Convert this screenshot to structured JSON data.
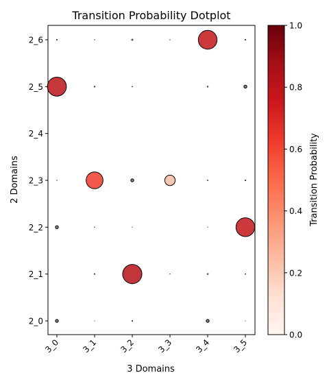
{
  "chart_data": {
    "type": "scatter",
    "title": "Transition Probability Dotplot",
    "xlabel": "3 Domains",
    "ylabel": "2 Domains",
    "x_categories": [
      "3_0",
      "3_1",
      "3_2",
      "3_3",
      "3_4",
      "3_5"
    ],
    "y_categories": [
      "2_0",
      "2_1",
      "2_2",
      "2_3",
      "2_4",
      "2_5",
      "2_6"
    ],
    "colorbar": {
      "label": "Transition Probability",
      "range": [
        0,
        1
      ],
      "ticks": [
        "0.0",
        "0.2",
        "0.4",
        "0.6",
        "0.8",
        "1.0"
      ],
      "colormap": "Reds"
    },
    "points": [
      {
        "x": "3_0",
        "y": "2_6",
        "value": 0.003
      },
      {
        "x": "3_1",
        "y": "2_6",
        "value": 0.001
      },
      {
        "x": "3_2",
        "y": "2_6",
        "value": 0.006
      },
      {
        "x": "3_3",
        "y": "2_6",
        "value": 0.001
      },
      {
        "x": "3_4",
        "y": "2_6",
        "value": 0.78
      },
      {
        "x": "3_5",
        "y": "2_6",
        "value": 0.003
      },
      {
        "x": "3_0",
        "y": "2_5",
        "value": 0.8
      },
      {
        "x": "3_1",
        "y": "2_5",
        "value": 0.004
      },
      {
        "x": "3_2",
        "y": "2_5",
        "value": 0.002
      },
      {
        "x": "3_4",
        "y": "2_5",
        "value": 0.004
      },
      {
        "x": "3_5",
        "y": "2_5",
        "value": 0.02
      },
      {
        "x": "3_0",
        "y": "2_3",
        "value": 0.001
      },
      {
        "x": "3_1",
        "y": "2_3",
        "value": 0.63
      },
      {
        "x": "3_2",
        "y": "2_3",
        "value": 0.02
      },
      {
        "x": "3_3",
        "y": "2_3",
        "value": 0.24
      },
      {
        "x": "3_4",
        "y": "2_3",
        "value": 0.002
      },
      {
        "x": "3_5",
        "y": "2_3",
        "value": 0.003
      },
      {
        "x": "3_0",
        "y": "2_2",
        "value": 0.02
      },
      {
        "x": "3_1",
        "y": "2_2",
        "value": 0.001
      },
      {
        "x": "3_2",
        "y": "2_2",
        "value": 0.0002
      },
      {
        "x": "3_4",
        "y": "2_2",
        "value": 0.0002
      },
      {
        "x": "3_5",
        "y": "2_2",
        "value": 0.78
      },
      {
        "x": "3_1",
        "y": "2_1",
        "value": 0.003
      },
      {
        "x": "3_2",
        "y": "2_1",
        "value": 0.82
      },
      {
        "x": "3_3",
        "y": "2_1",
        "value": 0.001
      },
      {
        "x": "3_4",
        "y": "2_1",
        "value": 0.004
      },
      {
        "x": "3_5",
        "y": "2_1",
        "value": 0.002
      },
      {
        "x": "3_0",
        "y": "2_0",
        "value": 0.02
      },
      {
        "x": "3_1",
        "y": "2_0",
        "value": 0.0005
      },
      {
        "x": "3_2",
        "y": "2_0",
        "value": 0.003
      },
      {
        "x": "3_4",
        "y": "2_0",
        "value": 0.02
      },
      {
        "x": "3_5",
        "y": "2_0",
        "value": 0.0005
      }
    ]
  }
}
